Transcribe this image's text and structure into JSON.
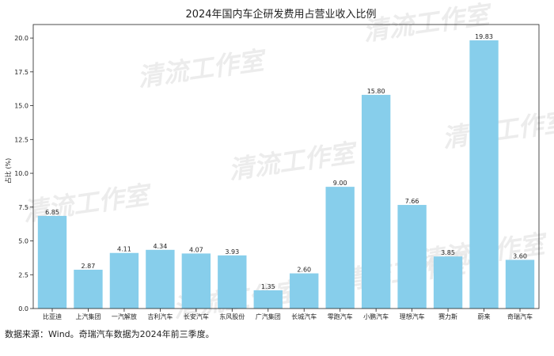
{
  "chart_data": {
    "type": "bar",
    "title": "2024年国内车企研发费用占营业收入比例",
    "xlabel": "",
    "ylabel": "占比 (%)",
    "ylim": [
      0,
      21
    ],
    "yticks": [
      0.0,
      2.5,
      5.0,
      7.5,
      10.0,
      12.5,
      15.0,
      17.5,
      20.0
    ],
    "ytick_labels": [
      "0.0",
      "2.5",
      "5.0",
      "7.5",
      "10.0",
      "12.5",
      "15.0",
      "17.5",
      "20.0"
    ],
    "grid": false,
    "bar_color": "#87CEEB",
    "categories": [
      "比亚迪",
      "上汽集团",
      "一汽解放",
      "吉利汽车",
      "长安汽车",
      "东风股份",
      "广汽集团",
      "长城汽车",
      "零跑汽车",
      "小鹏汽车",
      "理想汽车",
      "赛力斯",
      "蔚来",
      "奇瑞汽车"
    ],
    "values": [
      6.85,
      2.87,
      4.11,
      4.34,
      4.07,
      3.93,
      1.35,
      2.6,
      9.0,
      15.8,
      7.66,
      3.85,
      19.83,
      3.6
    ],
    "value_labels": [
      "6.85",
      "2.87",
      "4.11",
      "4.34",
      "4.07",
      "3.93",
      "1.35",
      "2.60",
      "9.00",
      "15.80",
      "7.66",
      "3.85",
      "19.83",
      "3.60"
    ]
  },
  "watermark": {
    "text": "清流工作室"
  },
  "source_note": "数据来源：Wind。奇瑞汽车数据为2024年前三季度。"
}
